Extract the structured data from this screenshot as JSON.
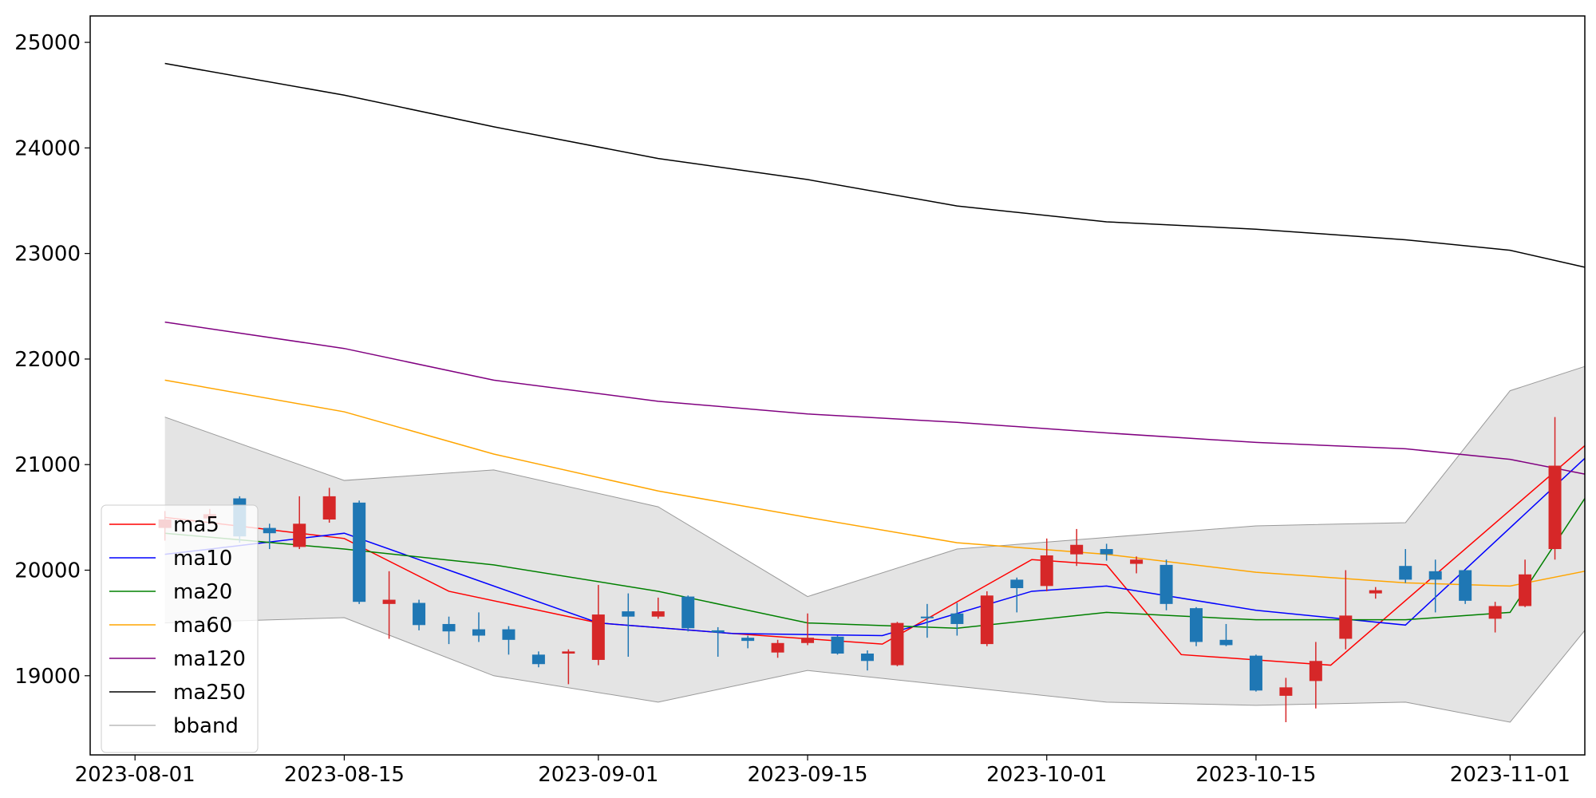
{
  "chart_data": {
    "type": "candlestick",
    "title": "",
    "xlabel": "",
    "ylabel": "",
    "ylim": [
      18250,
      25250
    ],
    "xlim": [
      "2023-07-29",
      "2023-11-06"
    ],
    "grid": false,
    "legend_position": "lower-left",
    "x_tick_labels": [
      "2023-08-01",
      "2023-08-15",
      "2023-09-01",
      "2023-09-15",
      "2023-10-01",
      "2023-10-15",
      "2023-11-01"
    ],
    "y_tick_labels": [
      "19000",
      "20000",
      "21000",
      "22000",
      "23000",
      "24000",
      "25000"
    ],
    "colors": {
      "up": "#d62728",
      "down": "#1f77b4",
      "bband_fill": "#e4e4e4",
      "bband_line": "#999999"
    },
    "candles": [
      {
        "date": "2023-08-03",
        "open": 20400,
        "close": 20480,
        "high": 20560,
        "low": 20280,
        "color": "red"
      },
      {
        "date": "2023-08-06",
        "open": 20490,
        "close": 20530,
        "high": 20580,
        "low": 20430,
        "color": "red"
      },
      {
        "date": "2023-08-08",
        "open": 20680,
        "close": 20320,
        "high": 20700,
        "low": 20260,
        "color": "blue"
      },
      {
        "date": "2023-08-10",
        "open": 20400,
        "close": 20350,
        "high": 20440,
        "low": 20200,
        "color": "blue"
      },
      {
        "date": "2023-08-12",
        "open": 20220,
        "close": 20440,
        "high": 20700,
        "low": 20200,
        "color": "red"
      },
      {
        "date": "2023-08-14",
        "open": 20480,
        "close": 20700,
        "high": 20780,
        "low": 20450,
        "color": "red"
      },
      {
        "date": "2023-08-16",
        "open": 20640,
        "close": 19700,
        "high": 20660,
        "low": 19680,
        "color": "blue"
      },
      {
        "date": "2023-08-18",
        "open": 19680,
        "close": 19720,
        "high": 19990,
        "low": 19350,
        "color": "red"
      },
      {
        "date": "2023-08-20",
        "open": 19690,
        "close": 19480,
        "high": 19720,
        "low": 19430,
        "color": "blue"
      },
      {
        "date": "2023-08-22",
        "open": 19490,
        "close": 19420,
        "high": 19560,
        "low": 19300,
        "color": "blue"
      },
      {
        "date": "2023-08-24",
        "open": 19440,
        "close": 19380,
        "high": 19600,
        "low": 19320,
        "color": "blue"
      },
      {
        "date": "2023-08-26",
        "open": 19440,
        "close": 19340,
        "high": 19470,
        "low": 19200,
        "color": "blue"
      },
      {
        "date": "2023-08-28",
        "open": 19200,
        "close": 19110,
        "high": 19230,
        "low": 19080,
        "color": "blue"
      },
      {
        "date": "2023-08-30",
        "open": 19210,
        "close": 19230,
        "high": 19250,
        "low": 18920,
        "color": "red"
      },
      {
        "date": "2023-09-01",
        "open": 19150,
        "close": 19580,
        "high": 19860,
        "low": 19100,
        "color": "red"
      },
      {
        "date": "2023-09-03",
        "open": 19610,
        "close": 19560,
        "high": 19780,
        "low": 19180,
        "color": "blue"
      },
      {
        "date": "2023-09-05",
        "open": 19560,
        "close": 19610,
        "high": 19740,
        "low": 19540,
        "color": "red"
      },
      {
        "date": "2023-09-07",
        "open": 19750,
        "close": 19450,
        "high": 19760,
        "low": 19420,
        "color": "blue"
      },
      {
        "date": "2023-09-09",
        "open": 19430,
        "close": 19410,
        "high": 19460,
        "low": 19180,
        "color": "blue"
      },
      {
        "date": "2023-09-11",
        "open": 19360,
        "close": 19330,
        "high": 19380,
        "low": 19260,
        "color": "blue"
      },
      {
        "date": "2023-09-13",
        "open": 19220,
        "close": 19310,
        "high": 19340,
        "low": 19170,
        "color": "red"
      },
      {
        "date": "2023-09-15",
        "open": 19310,
        "close": 19360,
        "high": 19590,
        "low": 19290,
        "color": "red"
      },
      {
        "date": "2023-09-17",
        "open": 19370,
        "close": 19210,
        "high": 19380,
        "low": 19200,
        "color": "blue"
      },
      {
        "date": "2023-09-19",
        "open": 19210,
        "close": 19140,
        "high": 19240,
        "low": 19050,
        "color": "blue"
      },
      {
        "date": "2023-09-21",
        "open": 19100,
        "close": 19500,
        "high": 19510,
        "low": 19090,
        "color": "red"
      },
      {
        "date": "2023-09-23",
        "open": 19560,
        "close": 19550,
        "high": 19680,
        "low": 19360,
        "color": "blue"
      },
      {
        "date": "2023-09-25",
        "open": 19590,
        "close": 19490,
        "high": 19690,
        "low": 19380,
        "color": "blue"
      },
      {
        "date": "2023-09-27",
        "open": 19300,
        "close": 19760,
        "high": 19800,
        "low": 19280,
        "color": "red"
      },
      {
        "date": "2023-09-29",
        "open": 19910,
        "close": 19830,
        "high": 19930,
        "low": 19600,
        "color": "blue"
      },
      {
        "date": "2023-10-01",
        "open": 19850,
        "close": 20140,
        "high": 20300,
        "low": 19800,
        "color": "red"
      },
      {
        "date": "2023-10-03",
        "open": 20150,
        "close": 20240,
        "high": 20390,
        "low": 20040,
        "color": "red"
      },
      {
        "date": "2023-10-05",
        "open": 20200,
        "close": 20150,
        "high": 20250,
        "low": 20090,
        "color": "blue"
      },
      {
        "date": "2023-10-07",
        "open": 20060,
        "close": 20100,
        "high": 20130,
        "low": 19970,
        "color": "red"
      },
      {
        "date": "2023-10-09",
        "open": 20050,
        "close": 19680,
        "high": 20100,
        "low": 19620,
        "color": "blue"
      },
      {
        "date": "2023-10-11",
        "open": 19640,
        "close": 19320,
        "high": 19650,
        "low": 19280,
        "color": "blue"
      },
      {
        "date": "2023-10-13",
        "open": 19340,
        "close": 19290,
        "high": 19490,
        "low": 19280,
        "color": "blue"
      },
      {
        "date": "2023-10-15",
        "open": 19190,
        "close": 18860,
        "high": 19200,
        "low": 18850,
        "color": "blue"
      },
      {
        "date": "2023-10-17",
        "open": 18810,
        "close": 18890,
        "high": 18980,
        "low": 18560,
        "color": "red"
      },
      {
        "date": "2023-10-19",
        "open": 18950,
        "close": 19140,
        "high": 19320,
        "low": 18690,
        "color": "red"
      },
      {
        "date": "2023-10-21",
        "open": 19350,
        "close": 19570,
        "high": 20000,
        "low": 19250,
        "color": "red"
      },
      {
        "date": "2023-10-23",
        "open": 19780,
        "close": 19810,
        "high": 19840,
        "low": 19730,
        "color": "red"
      },
      {
        "date": "2023-10-25",
        "open": 20040,
        "close": 19910,
        "high": 20200,
        "low": 19880,
        "color": "blue"
      },
      {
        "date": "2023-10-27",
        "open": 19990,
        "close": 19910,
        "high": 20100,
        "low": 19600,
        "color": "blue"
      },
      {
        "date": "2023-10-29",
        "open": 20000,
        "close": 19710,
        "high": 20000,
        "low": 19680,
        "color": "blue"
      },
      {
        "date": "2023-10-31",
        "open": 19540,
        "close": 19660,
        "high": 19700,
        "low": 19410,
        "color": "red"
      },
      {
        "date": "2023-11-02",
        "open": 19660,
        "close": 19960,
        "high": 20100,
        "low": 19650,
        "color": "red"
      },
      {
        "date": "2023-11-04",
        "open": 20200,
        "close": 20990,
        "high": 21450,
        "low": 20100,
        "color": "red"
      }
    ],
    "series": [
      {
        "name": "ma5",
        "color": "#ff0000",
        "x": [
          "2023-08-03",
          "2023-08-15",
          "2023-08-22",
          "2023-09-01",
          "2023-09-10",
          "2023-09-20",
          "2023-09-30",
          "2023-10-05",
          "2023-10-10",
          "2023-10-20",
          "2023-11-06"
        ],
        "y": [
          20500,
          20300,
          19800,
          19500,
          19400,
          19300,
          20100,
          20050,
          19200,
          19100,
          21180
        ]
      },
      {
        "name": "ma10",
        "color": "#0000ff",
        "x": [
          "2023-08-03",
          "2023-08-15",
          "2023-08-22",
          "2023-09-01",
          "2023-09-10",
          "2023-09-20",
          "2023-09-30",
          "2023-10-05",
          "2023-10-15",
          "2023-10-25",
          "2023-11-06"
        ],
        "y": [
          20150,
          20350,
          20000,
          19500,
          19400,
          19380,
          19800,
          19850,
          19620,
          19480,
          21060
        ]
      },
      {
        "name": "ma20",
        "color": "#008000",
        "x": [
          "2023-08-03",
          "2023-08-15",
          "2023-08-25",
          "2023-09-05",
          "2023-09-15",
          "2023-09-25",
          "2023-10-05",
          "2023-10-15",
          "2023-10-25",
          "2023-11-01",
          "2023-11-06"
        ],
        "y": [
          20350,
          20200,
          20050,
          19800,
          19500,
          19450,
          19600,
          19530,
          19530,
          19600,
          20680
        ]
      },
      {
        "name": "ma60",
        "color": "#ffa500",
        "x": [
          "2023-08-03",
          "2023-08-15",
          "2023-08-25",
          "2023-09-05",
          "2023-09-15",
          "2023-09-25",
          "2023-10-05",
          "2023-10-15",
          "2023-10-25",
          "2023-11-01",
          "2023-11-06"
        ],
        "y": [
          21800,
          21500,
          21100,
          20750,
          20500,
          20260,
          20150,
          19980,
          19880,
          19850,
          19990
        ]
      },
      {
        "name": "ma120",
        "color": "#800080",
        "x": [
          "2023-08-03",
          "2023-08-15",
          "2023-08-25",
          "2023-09-05",
          "2023-09-15",
          "2023-09-25",
          "2023-10-05",
          "2023-10-15",
          "2023-10-25",
          "2023-11-01",
          "2023-11-06"
        ],
        "y": [
          22350,
          22100,
          21800,
          21600,
          21480,
          21400,
          21300,
          21210,
          21150,
          21050,
          20910
        ]
      },
      {
        "name": "ma250",
        "color": "#000000",
        "x": [
          "2023-08-03",
          "2023-08-15",
          "2023-08-25",
          "2023-09-05",
          "2023-09-15",
          "2023-09-25",
          "2023-10-05",
          "2023-10-15",
          "2023-10-25",
          "2023-11-01",
          "2023-11-06"
        ],
        "y": [
          24800,
          24500,
          24200,
          23900,
          23700,
          23450,
          23300,
          23230,
          23130,
          23030,
          22870
        ]
      },
      {
        "name": "bband",
        "color": "#999999",
        "x": [
          "2023-08-03",
          "2023-08-15",
          "2023-08-25",
          "2023-09-05",
          "2023-09-15",
          "2023-09-25",
          "2023-10-05",
          "2023-10-15",
          "2023-10-25",
          "2023-11-01",
          "2023-11-06"
        ],
        "y_upper": [
          21450,
          20850,
          20950,
          20600,
          19750,
          20200,
          20310,
          20420,
          20450,
          21700,
          21930
        ],
        "y_lower": [
          19500,
          19550,
          19000,
          18750,
          19050,
          18900,
          18750,
          18720,
          18750,
          18560,
          19430
        ]
      }
    ]
  }
}
